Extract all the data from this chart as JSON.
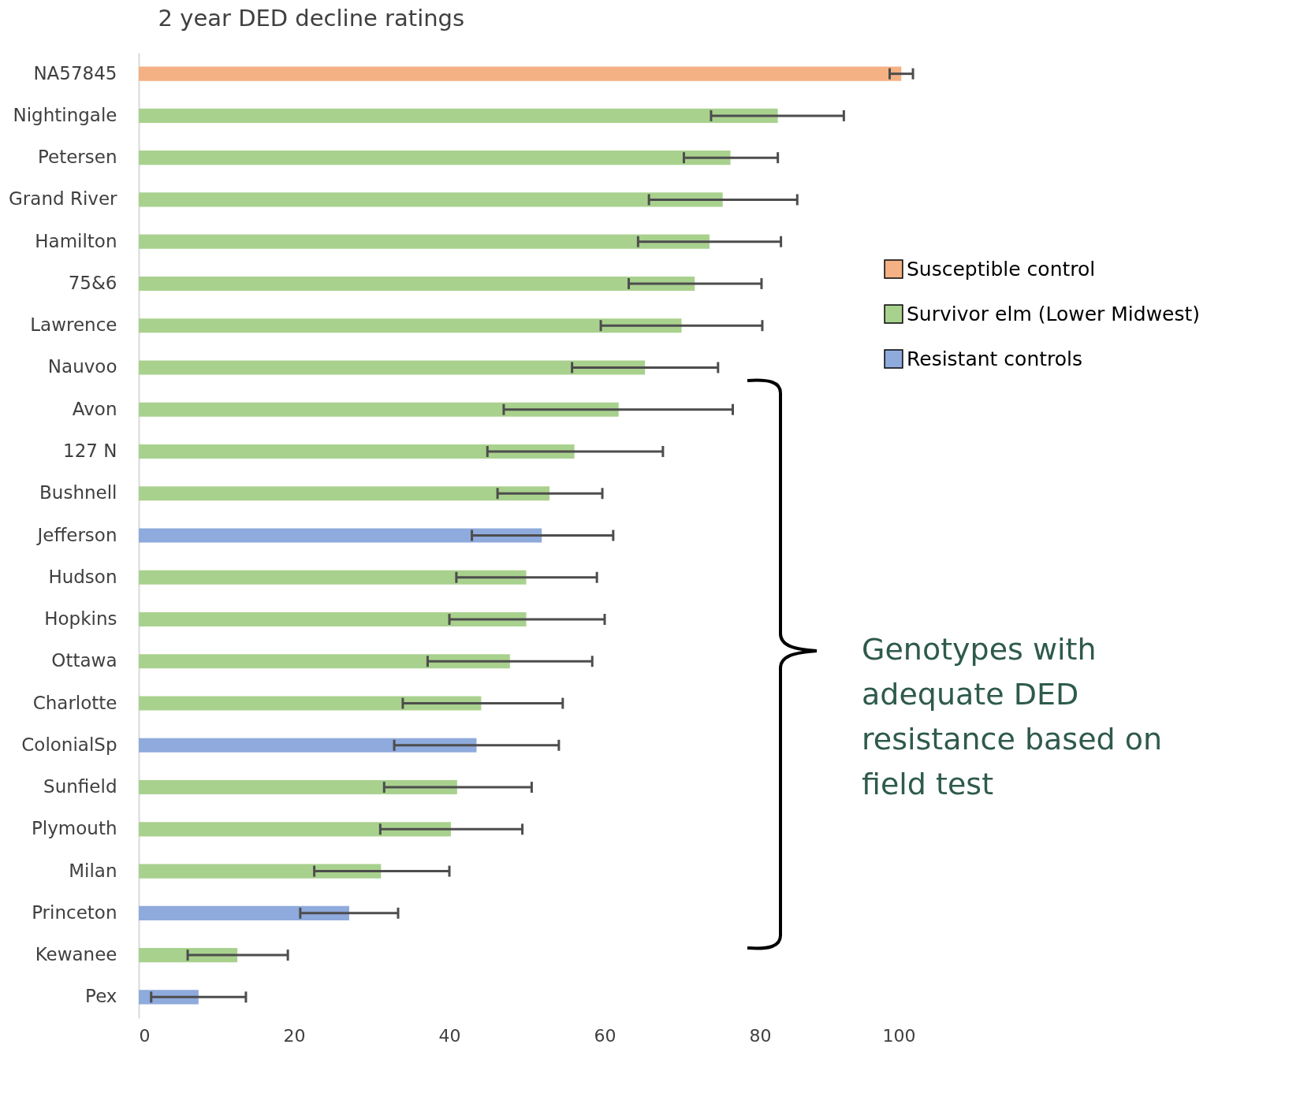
{
  "chart_data": {
    "type": "bar",
    "orientation": "horizontal",
    "title": "2 year DED decline ratings",
    "categories": [
      "NA57845",
      "Nightingale",
      "Petersen",
      "Grand River",
      "Hamilton",
      "75&6",
      "Lawrence",
      "Nauvoo",
      "Avon",
      "127 N",
      "Bushnell",
      "Jefferson",
      "Hudson",
      "Hopkins",
      "Ottawa",
      "Charlotte",
      "ColonialSp",
      "Sunfield",
      "Plymouth",
      "Milan",
      "Princeton",
      "Kewanee",
      "Pex"
    ],
    "series": [
      {
        "name": "Susceptible control",
        "color": "#f4b183",
        "values": [
          98.2,
          null,
          null,
          null,
          null,
          null,
          null,
          null,
          null,
          null,
          null,
          null,
          null,
          null,
          null,
          null,
          null,
          null,
          null,
          null,
          null,
          null,
          null
        ],
        "errors": [
          [
            96.7,
            99.7
          ],
          null,
          null,
          null,
          null,
          null,
          null,
          null,
          null,
          null,
          null,
          null,
          null,
          null,
          null,
          null,
          null,
          null,
          null,
          null,
          null,
          null,
          null
        ]
      },
      {
        "name": "Survivor elm (Lower Midwest)",
        "color": "#a9d18e",
        "values": [
          null,
          82.3,
          76.2,
          75.2,
          73.5,
          71.6,
          69.9,
          65.2,
          61.8,
          56.1,
          52.9,
          null,
          49.9,
          49.9,
          47.8,
          44.1,
          null,
          41.0,
          40.2,
          31.2,
          null,
          12.7,
          null
        ],
        "errors": [
          null,
          [
            73.7,
            90.8
          ],
          [
            70.2,
            82.3
          ],
          [
            65.7,
            84.8
          ],
          [
            64.3,
            82.7
          ],
          [
            63.1,
            80.2
          ],
          [
            59.5,
            80.3
          ],
          [
            55.8,
            74.6
          ],
          [
            47.0,
            76.5
          ],
          [
            44.9,
            67.5
          ],
          [
            46.2,
            59.7
          ],
          null,
          [
            40.9,
            59.0
          ],
          [
            40.0,
            60.0
          ],
          [
            37.2,
            58.4
          ],
          [
            34.0,
            54.6
          ],
          null,
          [
            31.6,
            50.6
          ],
          [
            31.1,
            49.4
          ],
          [
            22.6,
            40.0
          ],
          null,
          [
            6.3,
            19.2
          ],
          null
        ]
      },
      {
        "name": "Resistant controls",
        "color": "#8faadc",
        "values": [
          null,
          null,
          null,
          null,
          null,
          null,
          null,
          null,
          null,
          null,
          null,
          51.9,
          null,
          null,
          null,
          null,
          43.5,
          null,
          null,
          null,
          27.1,
          null,
          7.7
        ],
        "errors": [
          null,
          null,
          null,
          null,
          null,
          null,
          null,
          null,
          null,
          null,
          null,
          [
            42.9,
            61.1
          ],
          null,
          null,
          null,
          null,
          [
            32.9,
            54.1
          ],
          null,
          null,
          null,
          [
            20.8,
            33.4
          ],
          null,
          [
            1.6,
            13.8
          ]
        ]
      }
    ],
    "xlim": [
      0,
      100
    ],
    "xticks": [
      0,
      20,
      40,
      60,
      80,
      100
    ],
    "legend": "right",
    "grid": false,
    "annotations": [
      "Genotypes with adequate DED resistance based on field test"
    ]
  }
}
